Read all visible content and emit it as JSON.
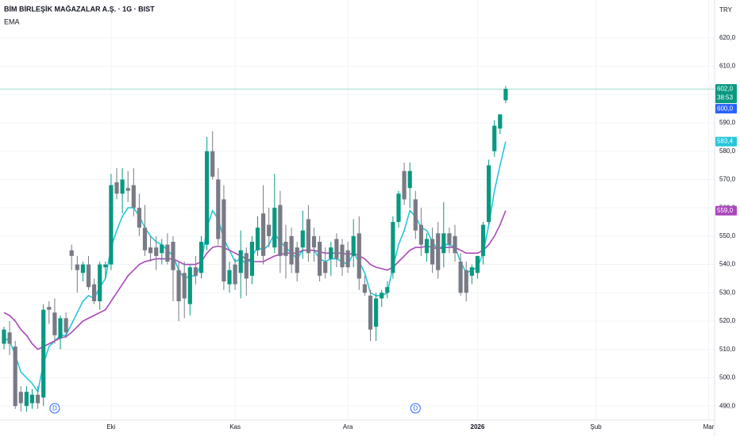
{
  "chart_data": {
    "type": "candlestick",
    "title": "BİM BİRLEŞİK MAĞAZALAR A.Ş. · 1G · BIST",
    "legend": "EMA",
    "currency": "TRY",
    "up_color": "#089981",
    "down_color": "#787b86",
    "ylim": [
      485,
      633.4
    ],
    "yticks": [
      {
        "value": 490,
        "label": "490,0"
      },
      {
        "value": 500,
        "label": "500,0"
      },
      {
        "value": 510,
        "label": "510,0"
      },
      {
        "value": 520,
        "label": "520,0"
      },
      {
        "value": 530,
        "label": "530,0"
      },
      {
        "value": 540,
        "label": "540,0"
      },
      {
        "value": 550,
        "label": "550,0"
      },
      {
        "value": 560,
        "label": "560,0"
      },
      {
        "value": 570,
        "label": "570,0"
      },
      {
        "value": 580,
        "label": "580,0"
      },
      {
        "value": 590,
        "label": "590,0"
      },
      {
        "value": 600,
        "label": "600,0"
      },
      {
        "value": 610,
        "label": "610,0"
      },
      {
        "value": 620,
        "label": "620,0"
      }
    ],
    "categories": [
      null,
      null,
      null,
      null,
      null,
      null,
      null,
      null,
      null,
      null,
      null,
      null,
      null,
      null,
      null,
      null,
      null,
      null,
      null,
      "Eki",
      null,
      null,
      null,
      null,
      null,
      null,
      null,
      null,
      null,
      null,
      null,
      null,
      null,
      null,
      null,
      null,
      null,
      null,
      null,
      null,
      null,
      "Kas",
      null,
      null,
      null,
      null,
      null,
      null,
      null,
      null,
      null,
      null,
      null,
      null,
      null,
      null,
      null,
      null,
      null,
      null,
      null,
      "Ara",
      null,
      null,
      null,
      null,
      null,
      null,
      null,
      null,
      null,
      null,
      null,
      null,
      null,
      null,
      null,
      null,
      null,
      null,
      null,
      null,
      null,
      null,
      "2026",
      null,
      null,
      null,
      null,
      null,
      null,
      null,
      null,
      null,
      null,
      null,
      null,
      null,
      null,
      null,
      null,
      null,
      null,
      null,
      null,
      "Şub",
      null,
      null,
      null,
      null,
      null,
      null,
      null,
      null,
      null,
      null,
      null,
      null,
      null,
      null,
      null,
      null,
      null,
      null,
      null,
      "Mar"
    ],
    "events": [
      null,
      null,
      null,
      null,
      null,
      null,
      null,
      null,
      null,
      "D",
      null,
      null,
      null,
      null,
      null,
      null,
      null,
      null,
      null,
      null,
      null,
      null,
      null,
      null,
      null,
      null,
      null,
      null,
      null,
      null,
      null,
      null,
      null,
      null,
      null,
      null,
      null,
      null,
      null,
      null,
      null,
      null,
      null,
      null,
      null,
      null,
      null,
      null,
      null,
      null,
      null,
      null,
      null,
      null,
      null,
      null,
      null,
      null,
      null,
      null,
      null,
      null,
      null,
      null,
      null,
      null,
      null,
      null,
      null,
      null,
      null,
      null,
      null,
      "D",
      null,
      null,
      null,
      null,
      null,
      null,
      null,
      null,
      null,
      null,
      null,
      null,
      null,
      null,
      null,
      null,
      null,
      null,
      null,
      null,
      null,
      null,
      null,
      null,
      null,
      null,
      null,
      null,
      null,
      null,
      null,
      null,
      null,
      null,
      null,
      null,
      null,
      null,
      null,
      null,
      null,
      null,
      null,
      null,
      null,
      null,
      null,
      null,
      null,
      null,
      null,
      null
    ],
    "open": [
      512,
      516,
      511,
      495,
      490,
      491,
      494,
      493,
      525,
      523,
      514,
      521,
      545,
      540,
      537,
      540,
      533,
      527,
      539,
      540,
      569,
      565,
      567,
      568,
      560,
      553,
      546,
      546,
      544,
      547,
      548,
      538,
      537,
      526,
      539,
      537,
      547,
      580,
      570,
      563,
      533,
      540,
      537,
      544,
      536,
      545,
      558,
      554,
      546,
      561,
      548,
      550,
      546,
      546,
      556,
      550,
      548,
      541,
      542,
      549,
      547,
      545,
      543,
      551,
      533,
      529,
      518,
      528,
      530,
      537,
      555,
      573,
      567,
      563,
      554,
      544,
      549,
      551,
      544,
      551,
      550,
      541,
      538,
      536,
      537,
      543,
      555,
      580,
      588,
      598,
      null,
      null,
      null,
      null,
      null,
      null,
      null,
      null,
      null,
      null,
      null,
      null,
      null,
      null,
      null,
      null,
      null,
      null,
      null,
      null,
      null,
      null,
      null,
      null,
      null,
      null,
      null,
      null,
      null,
      null,
      null,
      null,
      null,
      null,
      null,
      null
    ],
    "high": [
      518,
      520,
      513,
      497,
      497,
      496,
      497,
      526,
      527,
      528,
      522,
      523,
      547,
      543,
      541,
      543,
      535,
      541,
      541,
      572,
      574,
      574,
      573,
      574,
      565,
      561,
      550,
      550,
      549,
      551,
      550,
      541,
      541,
      540,
      543,
      550,
      585,
      587,
      574,
      568,
      541,
      542,
      552,
      546,
      550,
      557,
      568,
      560,
      572,
      566,
      554,
      553,
      548,
      559,
      561,
      553,
      550,
      546,
      548,
      551,
      549,
      548,
      556,
      557,
      536,
      531,
      530,
      531,
      534,
      557,
      566,
      576,
      576,
      566,
      560,
      551,
      553,
      555,
      562,
      553,
      554,
      544,
      541,
      540,
      543,
      555,
      577,
      591,
      593,
      603,
      null,
      null,
      null,
      null,
      null,
      null,
      null,
      null,
      null,
      null,
      null,
      null,
      null,
      null,
      null,
      null,
      null,
      null,
      null,
      null,
      null,
      null,
      null,
      null,
      null,
      null,
      null,
      null,
      null,
      null,
      null,
      null,
      null,
      null,
      null,
      null
    ],
    "low": [
      510,
      508,
      489,
      488,
      488,
      489,
      489,
      490,
      519,
      512,
      510,
      514,
      538,
      530,
      534,
      531,
      526,
      524,
      535,
      538,
      563,
      558,
      562,
      557,
      550,
      543,
      541,
      538,
      540,
      540,
      527,
      520,
      521,
      522,
      533,
      535,
      545,
      570,
      547,
      531,
      530,
      531,
      528,
      529,
      533,
      543,
      540,
      546,
      544,
      537,
      535,
      537,
      534,
      542,
      541,
      541,
      534,
      535,
      536,
      539,
      536,
      537,
      539,
      531,
      529,
      513,
      513,
      525,
      528,
      535,
      553,
      561,
      560,
      549,
      543,
      541,
      537,
      535,
      539,
      544,
      541,
      529,
      527,
      533,
      535,
      540,
      554,
      578,
      586,
      597,
      null,
      null,
      null,
      null,
      null,
      null,
      null,
      null,
      null,
      null,
      null,
      null,
      null,
      null,
      null,
      null,
      null,
      null,
      null,
      null,
      null,
      null,
      null,
      null,
      null,
      null,
      null,
      null,
      null,
      null,
      null,
      null,
      null,
      null,
      null,
      null
    ],
    "close": [
      517,
      512,
      490,
      491,
      495,
      494,
      491,
      524,
      524,
      515,
      521,
      516,
      543,
      538,
      540,
      532,
      527,
      540,
      540,
      568,
      565,
      570,
      566,
      560,
      553,
      545,
      544,
      543,
      547,
      541,
      538,
      527,
      528,
      539,
      536,
      548,
      580,
      571,
      549,
      534,
      538,
      533,
      545,
      535,
      548,
      553,
      543,
      550,
      560,
      543,
      543,
      540,
      537,
      552,
      544,
      546,
      536,
      537,
      546,
      542,
      539,
      539,
      550,
      535,
      530,
      517,
      528,
      530,
      532,
      555,
      565,
      563,
      573,
      552,
      547,
      549,
      540,
      538,
      551,
      547,
      544,
      530,
      530,
      539,
      543,
      554,
      575,
      589,
      593,
      602,
      null,
      null,
      null,
      null,
      null,
      null,
      null,
      null,
      null,
      null,
      null,
      null,
      null,
      null,
      null,
      null,
      null,
      null,
      null,
      null,
      null,
      null,
      null,
      null,
      null,
      null,
      null,
      null,
      null,
      null,
      null,
      null,
      null,
      null,
      null,
      null
    ],
    "last_price_label": "602,0",
    "countdown": "38:53",
    "other_price": {
      "value": 600,
      "label": "600,0"
    },
    "other_price_color": "#2962ff",
    "series": [
      {
        "color": "#26c6da",
        "last_label": "583,4",
        "values": [
          514,
          513,
          508,
          502,
          500,
          498,
          495,
          505,
          511,
          513,
          515,
          515,
          519,
          523,
          527,
          529,
          528,
          532,
          535,
          546,
          552,
          557,
          560,
          560,
          557,
          553,
          550,
          548,
          547,
          545,
          543,
          538,
          535,
          536,
          536,
          540,
          553,
          559,
          556,
          549,
          545,
          541,
          542,
          540,
          543,
          546,
          545,
          547,
          551,
          548,
          546,
          544,
          542,
          545,
          545,
          545,
          542,
          541,
          542,
          542,
          541,
          540,
          544,
          541,
          537,
          530,
          529,
          529,
          530,
          539,
          547,
          552,
          559,
          557,
          553,
          552,
          548,
          545,
          547,
          547,
          546,
          541,
          537,
          538,
          539,
          544,
          554,
          566,
          575,
          583.4,
          null,
          null,
          null,
          null,
          null,
          null,
          null,
          null,
          null,
          null,
          null,
          null,
          null,
          null,
          null,
          null,
          null,
          null,
          null,
          null,
          null,
          null,
          null,
          null,
          null,
          null,
          null,
          null,
          null,
          null,
          null,
          null,
          null,
          null,
          null,
          null
        ]
      },
      {
        "color": "#ab47bc",
        "last_label": "559,0",
        "values": [
          523,
          522,
          520,
          517,
          515,
          512,
          510,
          511,
          512,
          513,
          514,
          514.5,
          516,
          518,
          520,
          521,
          522,
          523,
          524,
          527,
          530,
          533,
          536,
          538,
          540,
          541,
          541.5,
          542,
          542,
          542,
          542,
          541,
          540,
          540,
          540,
          541,
          544,
          546,
          546.5,
          546,
          545,
          544,
          543,
          542,
          541,
          541,
          541,
          542,
          543,
          543.5,
          544,
          544,
          544,
          545,
          545,
          545,
          544.5,
          544,
          544,
          544,
          544,
          543.5,
          544,
          543,
          542,
          540,
          539,
          538.5,
          538,
          539,
          541,
          543,
          545,
          546,
          546,
          546.5,
          546,
          545.5,
          546,
          546,
          546,
          545,
          544,
          544,
          544,
          545,
          547,
          550,
          554,
          559,
          null,
          null,
          null,
          null,
          null,
          null,
          null,
          null,
          null,
          null,
          null,
          null,
          null,
          null,
          null,
          null,
          null,
          null,
          null,
          null,
          null,
          null,
          null,
          null,
          null,
          null,
          null,
          null,
          null,
          null,
          null,
          null,
          null,
          null,
          null,
          null
        ]
      }
    ]
  }
}
